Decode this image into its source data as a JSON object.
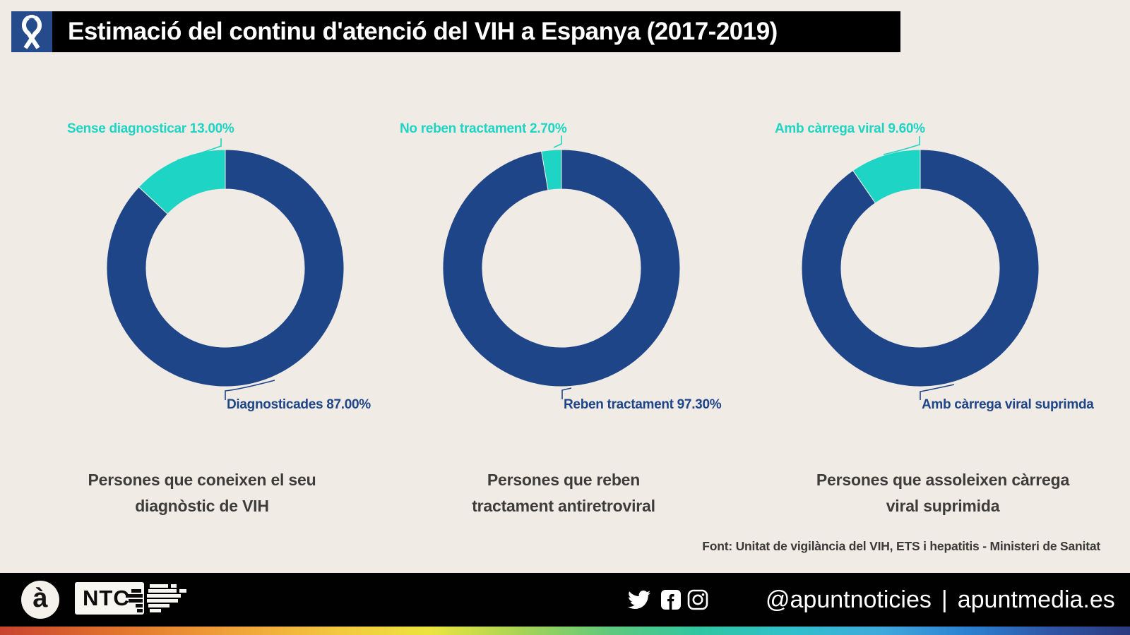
{
  "header": {
    "title": "Estimació del continu d'atenció del VIH a Espanya (2017-2019)"
  },
  "colors": {
    "background": "#f0ece5",
    "primary_blue": "#1f4589",
    "accent_teal": "#1ed4c4",
    "header_icon_bg": "#254b8c",
    "caption_gray": "#3d3c3a"
  },
  "chart_data": [
    {
      "type": "pie",
      "style": "donut",
      "slices": [
        {
          "name": "Diagnosticades",
          "value": 87.0,
          "color": "#1f4589",
          "label": "Diagnosticades 87.00%"
        },
        {
          "name": "Sense diagnosticar",
          "value": 13.0,
          "color": "#1ed4c4",
          "label": "Sense diagnosticar 13.00%"
        }
      ],
      "caption_lines": [
        "Persones que coneixen el seu",
        "diagnòstic de VIH"
      ]
    },
    {
      "type": "pie",
      "style": "donut",
      "slices": [
        {
          "name": "Reben tractament",
          "value": 97.3,
          "color": "#1f4589",
          "label": "Reben tractament 97.30%"
        },
        {
          "name": "No reben tractament",
          "value": 2.7,
          "color": "#1ed4c4",
          "label": "No reben tractament 2.70%"
        }
      ],
      "caption_lines": [
        "Persones que reben",
        "tractament antiretroviral"
      ]
    },
    {
      "type": "pie",
      "style": "donut",
      "slices": [
        {
          "name": "Amb càrrega viral suprimda",
          "value": 90.4,
          "color": "#1f4589",
          "label": "Amb càrrega viral suprimda"
        },
        {
          "name": "Amb càrrega viral",
          "value": 9.6,
          "color": "#1ed4c4",
          "label": "Amb càrrega viral 9.60%"
        }
      ],
      "caption_lines": [
        "Persones que assoleixen càrrega",
        "viral suprimida"
      ]
    }
  ],
  "source": {
    "text": "Font: Unitat de vigilància del VIH, ETS i hepatitis - Ministeri de Sanitat"
  },
  "footer": {
    "brand_letter": "à",
    "ntc_label": "NTC",
    "handle": "@apuntnoticies",
    "separator": "|",
    "website": "apuntmedia.es",
    "icons": [
      "twitter",
      "facebook",
      "instagram"
    ]
  }
}
